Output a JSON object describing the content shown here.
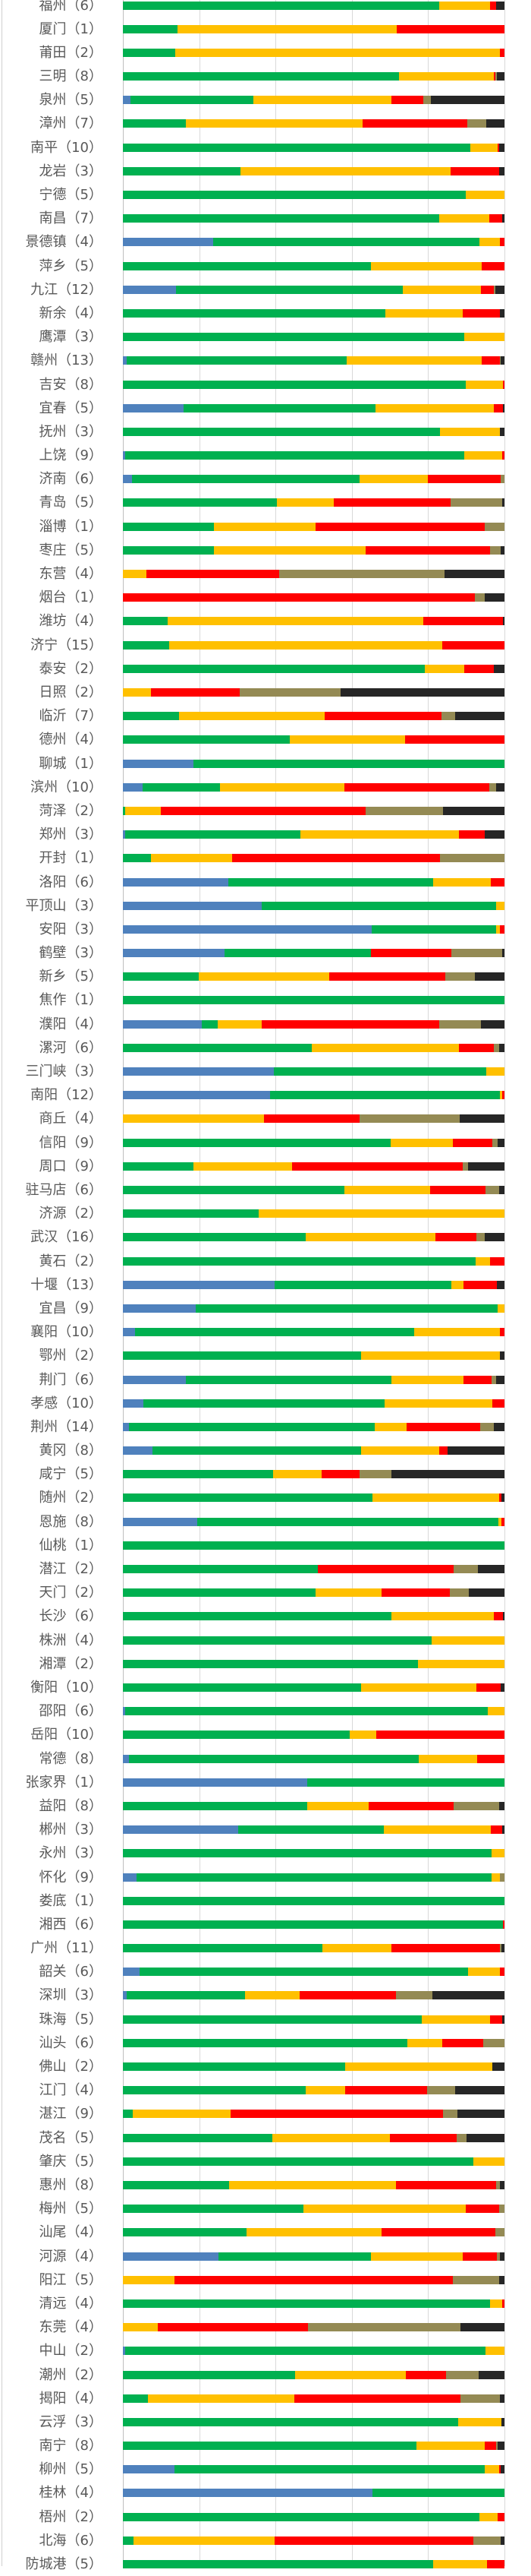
{
  "chart_data": {
    "type": "bar",
    "orientation": "horizontal",
    "stacked": true,
    "xlim": [
      0,
      100
    ],
    "grid": true,
    "legend": "none",
    "series_colors": [
      "#4f81bd",
      "#00b050",
      "#ffc000",
      "#ff0000",
      "#948a54",
      "#262626"
    ],
    "rows": [
      {
        "label": "福州（6）",
        "values": [
          0,
          83,
          13.2,
          1.6,
          0,
          2.2
        ]
      },
      {
        "label": "厦门（1）",
        "values": [
          0,
          14.4,
          57.4,
          28.2,
          0,
          0
        ]
      },
      {
        "label": "莆田（2）",
        "values": [
          0,
          13.7,
          85.1,
          1.2,
          0,
          0
        ]
      },
      {
        "label": "三明（8）",
        "values": [
          0,
          72.3,
          24.9,
          0.4,
          0.5,
          1.9
        ]
      },
      {
        "label": "泉州（5）",
        "values": [
          2,
          32.2,
          36.2,
          8.3,
          2,
          19.3
        ]
      },
      {
        "label": "漳州（7）",
        "values": [
          0,
          16.6,
          46.3,
          27.3,
          5.1,
          4.7
        ]
      },
      {
        "label": "南平（10）",
        "values": [
          0,
          91,
          7.2,
          0.4,
          0,
          1.4
        ]
      },
      {
        "label": "龙岩（3）",
        "values": [
          0,
          30.9,
          55,
          12.7,
          0,
          1.4
        ]
      },
      {
        "label": "宁德（5）",
        "values": [
          0,
          89.9,
          10.1,
          0,
          0,
          0
        ]
      },
      {
        "label": "南昌（7）",
        "values": [
          0,
          82.9,
          13.1,
          3.5,
          0,
          0.5
        ]
      },
      {
        "label": "景德镇（4）",
        "values": [
          23.6,
          69.8,
          5.4,
          1.2,
          0,
          0
        ]
      },
      {
        "label": "萍乡（5）",
        "values": [
          0,
          65,
          29,
          6,
          0,
          0
        ]
      },
      {
        "label": "九江（12）",
        "values": [
          13.9,
          59.4,
          20.5,
          3.4,
          0.5,
          2.3
        ]
      },
      {
        "label": "新余（4）",
        "values": [
          0,
          68.7,
          20.3,
          9.9,
          0,
          1.1
        ]
      },
      {
        "label": "鹰潭（3）",
        "values": [
          0,
          89.5,
          10.5,
          0,
          0,
          0
        ]
      },
      {
        "label": "赣州（13）",
        "values": [
          0.9,
          57.8,
          35.3,
          4.8,
          0.3,
          0.9
        ]
      },
      {
        "label": "吉安（8）",
        "values": [
          0,
          89.9,
          9.7,
          0.4,
          0,
          0
        ]
      },
      {
        "label": "宜春（5）",
        "values": [
          15.9,
          50.4,
          31,
          2.3,
          0,
          0.4
        ]
      },
      {
        "label": "抚州（3）",
        "values": [
          0,
          83.1,
          15.8,
          0,
          0,
          1.1
        ]
      },
      {
        "label": "上饶（9）",
        "values": [
          0.5,
          88.9,
          10,
          0.6,
          0,
          0
        ]
      },
      {
        "label": "济南（6）",
        "values": [
          2.3,
          59.8,
          17.9,
          19,
          1,
          0
        ]
      },
      {
        "label": "青岛（5）",
        "values": [
          0,
          40.4,
          14.9,
          30.6,
          13.6,
          0.5
        ]
      },
      {
        "label": "淄博（1）",
        "values": [
          0,
          23.8,
          26.7,
          44.4,
          5.1,
          0
        ]
      },
      {
        "label": "枣庄（5）",
        "values": [
          0,
          23.8,
          39.9,
          32.6,
          2.8,
          0.9
        ]
      },
      {
        "label": "东营（4）",
        "values": [
          0,
          0,
          6.2,
          34.7,
          43.4,
          15.7
        ]
      },
      {
        "label": "烟台（1）",
        "values": [
          0,
          0,
          0,
          92.2,
          2.6,
          5.2
        ]
      },
      {
        "label": "潍坊（4）",
        "values": [
          0,
          11.7,
          67,
          20.9,
          0,
          0.4
        ]
      },
      {
        "label": "济宁（15）",
        "values": [
          0,
          12.2,
          71.5,
          16.3,
          0,
          0
        ]
      },
      {
        "label": "泰安（2）",
        "values": [
          0,
          79.1,
          10.4,
          7.7,
          0,
          2.8
        ]
      },
      {
        "label": "日照（2）",
        "values": [
          0,
          0,
          7.4,
          23.3,
          26.4,
          42.9
        ]
      },
      {
        "label": "临沂（7）",
        "values": [
          0,
          14.8,
          38.1,
          30.7,
          3.5,
          12.9
        ]
      },
      {
        "label": "德州（4）",
        "values": [
          0,
          43.8,
          30.1,
          26.1,
          0,
          0
        ]
      },
      {
        "label": "聊城（1）",
        "values": [
          18.5,
          81.5,
          0,
          0,
          0,
          0
        ]
      },
      {
        "label": "滨州（10）",
        "values": [
          5.2,
          20.3,
          32.6,
          38,
          1.8,
          2.1
        ]
      },
      {
        "label": "菏泽（2）",
        "values": [
          0,
          0.5,
          9.5,
          53.7,
          20.2,
          16.1
        ]
      },
      {
        "label": "郑州（3）",
        "values": [
          0.5,
          46,
          41.6,
          6.7,
          0,
          5.2
        ]
      },
      {
        "label": "开封（1）",
        "values": [
          0,
          7.4,
          21.2,
          54.6,
          16.8,
          0
        ]
      },
      {
        "label": "洛阳（6）",
        "values": [
          27.7,
          53.6,
          15.1,
          3.6,
          0,
          0
        ]
      },
      {
        "label": "平顶山（3）",
        "values": [
          36.3,
          61.6,
          2.1,
          0,
          0,
          0
        ]
      },
      {
        "label": "安阳（3）",
        "values": [
          65.3,
          32.6,
          0.9,
          1.2,
          0,
          0
        ]
      },
      {
        "label": "鹤壁（3）",
        "values": [
          26.7,
          38.4,
          0,
          21,
          13.4,
          0.5
        ]
      },
      {
        "label": "新乡（5）",
        "values": [
          0,
          19.8,
          34.2,
          30.5,
          7.7,
          7.8
        ]
      },
      {
        "label": "焦作（1）",
        "values": [
          0,
          100,
          0,
          0,
          0,
          0
        ]
      },
      {
        "label": "濮阳（4）",
        "values": [
          20.7,
          4.2,
          11.4,
          46.7,
          10.9,
          6.1
        ]
      },
      {
        "label": "漯河（6）",
        "values": [
          0,
          49.5,
          38.6,
          9.1,
          1.5,
          1.3
        ]
      },
      {
        "label": "三门峡（3）",
        "values": [
          39.5,
          55.8,
          4.7,
          0,
          0,
          0
        ]
      },
      {
        "label": "南阳（12）",
        "values": [
          38.6,
          60.2,
          0.7,
          0.5,
          0,
          0
        ]
      },
      {
        "label": "商丘（4）",
        "values": [
          0,
          0,
          36.9,
          25.2,
          26.2,
          11.7
        ]
      },
      {
        "label": "信阳（9）",
        "values": [
          0,
          70.2,
          16.2,
          10.4,
          1.5,
          1.7
        ]
      },
      {
        "label": "周口（9）",
        "values": [
          0,
          18.4,
          25.9,
          44.7,
          1.5,
          9.5
        ]
      },
      {
        "label": "驻马店（6）",
        "values": [
          0,
          58.1,
          22.5,
          14.4,
          3.7,
          1.3
        ]
      },
      {
        "label": "济源（2）",
        "values": [
          0,
          35.5,
          64.5,
          0,
          0,
          0
        ]
      },
      {
        "label": "武汉（16）",
        "values": [
          0,
          47.9,
          34.1,
          10.6,
          2.2,
          5.2
        ]
      },
      {
        "label": "黄石（2）",
        "values": [
          0,
          92.5,
          3.7,
          3.8,
          0,
          0
        ]
      },
      {
        "label": "十堰（13）",
        "values": [
          39.8,
          46.3,
          3.2,
          8.7,
          0,
          2
        ]
      },
      {
        "label": "宜昌（9）",
        "values": [
          19,
          79.2,
          1.8,
          0,
          0,
          0
        ]
      },
      {
        "label": "襄阳（10）",
        "values": [
          3.1,
          73.2,
          22.6,
          1.1,
          0,
          0
        ]
      },
      {
        "label": "鄂州（2）",
        "values": [
          0,
          62.4,
          36.5,
          0,
          0,
          1.1
        ]
      },
      {
        "label": "荆门（6）",
        "values": [
          16.5,
          53.9,
          18.9,
          7.3,
          1.3,
          2.1
        ]
      },
      {
        "label": "孝感（10）",
        "values": [
          5.4,
          63.2,
          28.2,
          3.2,
          0,
          0
        ]
      },
      {
        "label": "荆州（14）",
        "values": [
          1.6,
          64.4,
          8.4,
          19.2,
          3.7,
          2.7
        ]
      },
      {
        "label": "黄冈（8）",
        "values": [
          7.7,
          54.7,
          20.5,
          2.1,
          0,
          15
        ]
      },
      {
        "label": "咸宁（5）",
        "values": [
          0,
          39.4,
          12.6,
          10.1,
          8.3,
          29.6
        ]
      },
      {
        "label": "随州（2）",
        "values": [
          0,
          65.4,
          33.2,
          0.7,
          0,
          0.7
        ]
      },
      {
        "label": "恩施（8）",
        "values": [
          19.5,
          78.9,
          0.8,
          0.8,
          0,
          0
        ]
      },
      {
        "label": "仙桃（1）",
        "values": [
          0,
          100,
          0,
          0,
          0,
          0
        ]
      },
      {
        "label": "潜江（2）",
        "values": [
          0,
          51.1,
          0,
          35.6,
          6.4,
          6.9
        ]
      },
      {
        "label": "天门（2）",
        "values": [
          0,
          50.5,
          17.3,
          17.8,
          5,
          9.4
        ]
      },
      {
        "label": "长沙（6）",
        "values": [
          0,
          70.4,
          26.9,
          2.3,
          0,
          0.4
        ]
      },
      {
        "label": "株洲（4）",
        "values": [
          0,
          81,
          19,
          0,
          0,
          0
        ]
      },
      {
        "label": "湘潭（2）",
        "values": [
          0,
          77.3,
          22.7,
          0,
          0,
          0
        ]
      },
      {
        "label": "衡阳（10）",
        "values": [
          0,
          62.4,
          30.3,
          6.3,
          0,
          1
        ]
      },
      {
        "label": "邵阳（6）",
        "values": [
          0.5,
          95.1,
          4.4,
          0,
          0,
          0
        ]
      },
      {
        "label": "岳阳（10）",
        "values": [
          0,
          59.5,
          6.9,
          33.6,
          0,
          0
        ]
      },
      {
        "label": "常德（8）",
        "values": [
          1.6,
          75.9,
          15.4,
          7.1,
          0,
          0
        ]
      },
      {
        "label": "张家界（1）",
        "values": [
          48.4,
          51.6,
          0,
          0,
          0,
          0
        ]
      },
      {
        "label": "益阳（8）",
        "values": [
          0,
          48.3,
          16.2,
          22.2,
          12,
          1.3
        ]
      },
      {
        "label": "郴州（3）",
        "values": [
          30.2,
          38.2,
          28,
          3.1,
          0,
          0.5
        ]
      },
      {
        "label": "永州（3）",
        "values": [
          0,
          96.6,
          3.4,
          0,
          0,
          0
        ]
      },
      {
        "label": "怀化（9）",
        "values": [
          3.5,
          93.1,
          2.2,
          0,
          1.2,
          0
        ]
      },
      {
        "label": "娄底（1）",
        "values": [
          0,
          100,
          0,
          0,
          0,
          0
        ]
      },
      {
        "label": "湘西（6）",
        "values": [
          0,
          99.6,
          0,
          0.4,
          0,
          0
        ]
      },
      {
        "label": "广州（11）",
        "values": [
          0,
          52.3,
          18.1,
          28.5,
          0.4,
          0.7
        ]
      },
      {
        "label": "韶关（6）",
        "values": [
          4.4,
          86.1,
          8.3,
          1.2,
          0,
          0
        ]
      },
      {
        "label": "深圳（3）",
        "values": [
          0.9,
          31.2,
          14.3,
          25.1,
          9.6,
          18.9
        ]
      },
      {
        "label": "珠海（5）",
        "values": [
          0,
          78.4,
          17.8,
          3.3,
          0,
          0.5
        ]
      },
      {
        "label": "汕头（6）",
        "values": [
          0,
          74.6,
          9.1,
          10.8,
          5.5,
          0
        ]
      },
      {
        "label": "佛山（2）",
        "values": [
          0,
          58.2,
          38.7,
          0,
          0,
          3.1
        ]
      },
      {
        "label": "江门（4）",
        "values": [
          0,
          48,
          10.2,
          21.6,
          7.3,
          12.9
        ]
      },
      {
        "label": "湛江（9）",
        "values": [
          0,
          2.6,
          25.7,
          55.7,
          3.7,
          12.3
        ]
      },
      {
        "label": "茂名（5）",
        "values": [
          0,
          39.1,
          30.8,
          17.5,
          2.6,
          10
        ]
      },
      {
        "label": "肇庆（5）",
        "values": [
          0,
          91.8,
          8.2,
          0,
          0,
          0
        ]
      },
      {
        "label": "惠州（8）",
        "values": [
          0,
          27.9,
          43.6,
          26.4,
          0.9,
          1.2
        ]
      },
      {
        "label": "梅州（5）",
        "values": [
          0,
          47.3,
          42.5,
          8.8,
          1.4,
          0
        ]
      },
      {
        "label": "汕尾（4）",
        "values": [
          0,
          32.4,
          35.3,
          30,
          2.3,
          0
        ]
      },
      {
        "label": "河源（4）",
        "values": [
          25.1,
          40,
          23.9,
          9,
          0.8,
          1.2
        ]
      },
      {
        "label": "阳江（5）",
        "values": [
          0,
          0,
          13.6,
          72.9,
          12.1,
          1.4
        ]
      },
      {
        "label": "清远（4）",
        "values": [
          0,
          96.2,
          3.3,
          0.5,
          0,
          0
        ]
      },
      {
        "label": "东莞（4）",
        "values": [
          0,
          0,
          9.2,
          39.4,
          39.9,
          11.5
        ]
      },
      {
        "label": "中山（2）",
        "values": [
          0.5,
          94.5,
          5,
          0,
          0,
          0
        ]
      },
      {
        "label": "潮州（2）",
        "values": [
          0,
          45.1,
          29,
          10.5,
          8.6,
          6.8
        ]
      },
      {
        "label": "揭阳（4）",
        "values": [
          0,
          6.6,
          38.3,
          43.6,
          10.3,
          1.2
        ]
      },
      {
        "label": "云浮（3）",
        "values": [
          0,
          87.9,
          11.4,
          0,
          0,
          0.7
        ]
      },
      {
        "label": "南宁（8）",
        "values": [
          0,
          77,
          17.8,
          3.1,
          0.3,
          1.8
        ]
      },
      {
        "label": "柳州（5）",
        "values": [
          13.6,
          81.2,
          3.8,
          0.5,
          0,
          0.9
        ]
      },
      {
        "label": "桂林（4）",
        "values": [
          65.4,
          34.6,
          0,
          0,
          0,
          0
        ]
      },
      {
        "label": "梧州（2）",
        "values": [
          0,
          93.4,
          4.9,
          1.7,
          0,
          0
        ]
      },
      {
        "label": "北海（6）",
        "values": [
          0,
          2.8,
          37,
          52,
          7.3,
          0.9
        ]
      },
      {
        "label": "防城港（5）",
        "values": [
          0,
          81.3,
          14.1,
          4.6,
          0,
          0
        ]
      }
    ]
  }
}
